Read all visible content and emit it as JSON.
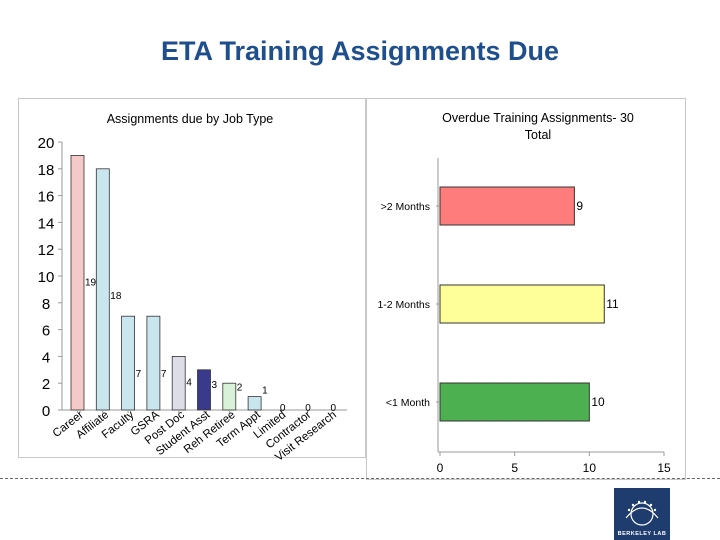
{
  "slide": {
    "title": "ETA Training Assignments Due"
  },
  "logo": {
    "label": "BERKELEY LAB"
  },
  "colors": {
    "title": "#1f4e8c",
    "logo_bg": "#1f3c6e"
  },
  "chart_data": [
    {
      "type": "bar",
      "title": "Assignments due by Job Type",
      "categories": [
        "Career",
        "Affiliate",
        "Faculty",
        "GSRA",
        "Post Doc",
        "Student Asst",
        "Reh Retiree",
        "Term Appt",
        "Limited",
        "Contractor",
        "Visit Research"
      ],
      "values": [
        19,
        18,
        7,
        7,
        4,
        3,
        2,
        1,
        0,
        0,
        0
      ],
      "data_labels": [
        "19",
        "18",
        "7",
        "7",
        "4",
        "3",
        "2",
        "1",
        "0",
        "0",
        "0"
      ],
      "colors": [
        "#f6c9c9",
        "#c9e6ee",
        "#c9e6ee",
        "#c9e6ee",
        "#dddde8",
        "#3a3a8c",
        "#d9f0d9",
        "#c9e6ee",
        "#ffffff",
        "#ffffff",
        "#ffffff"
      ],
      "ylim": [
        0,
        20
      ],
      "yticks": [
        "0",
        "2",
        "4",
        "6",
        "8",
        "10",
        "12",
        "14",
        "16",
        "18",
        "20"
      ],
      "grid": false,
      "xlabel": "",
      "ylabel": ""
    },
    {
      "type": "bar",
      "orientation": "horizontal",
      "title": "Overdue Training Assignments- 30 Total",
      "title_lines": [
        "Overdue Training Assignments- 30",
        "Total"
      ],
      "categories": [
        ">2 Months",
        "1-2 Months",
        "<1 Month"
      ],
      "values": [
        9,
        11,
        10
      ],
      "data_labels": [
        "9",
        "11",
        "10"
      ],
      "colors": [
        "#ff7c7c",
        "#ffff99",
        "#4caf50"
      ],
      "xlim": [
        0,
        15
      ],
      "xticks": [
        "0",
        "5",
        "10",
        "15"
      ],
      "grid": false,
      "xlabel": "",
      "ylabel": ""
    }
  ]
}
